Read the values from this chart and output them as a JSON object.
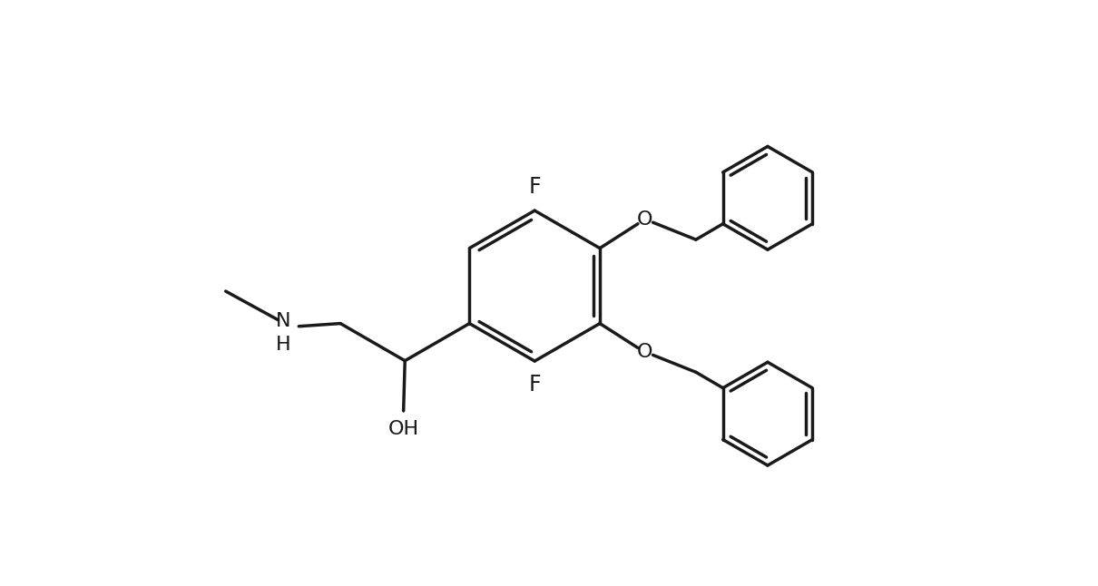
{
  "background_color": "#ffffff",
  "line_color": "#1a1a1a",
  "line_width": 2.5,
  "font_size": 16,
  "figsize": [
    12.1,
    6.46
  ],
  "dpi": 100,
  "xlim": [
    -1.0,
    12.0
  ],
  "ylim": [
    -0.5,
    7.5
  ]
}
